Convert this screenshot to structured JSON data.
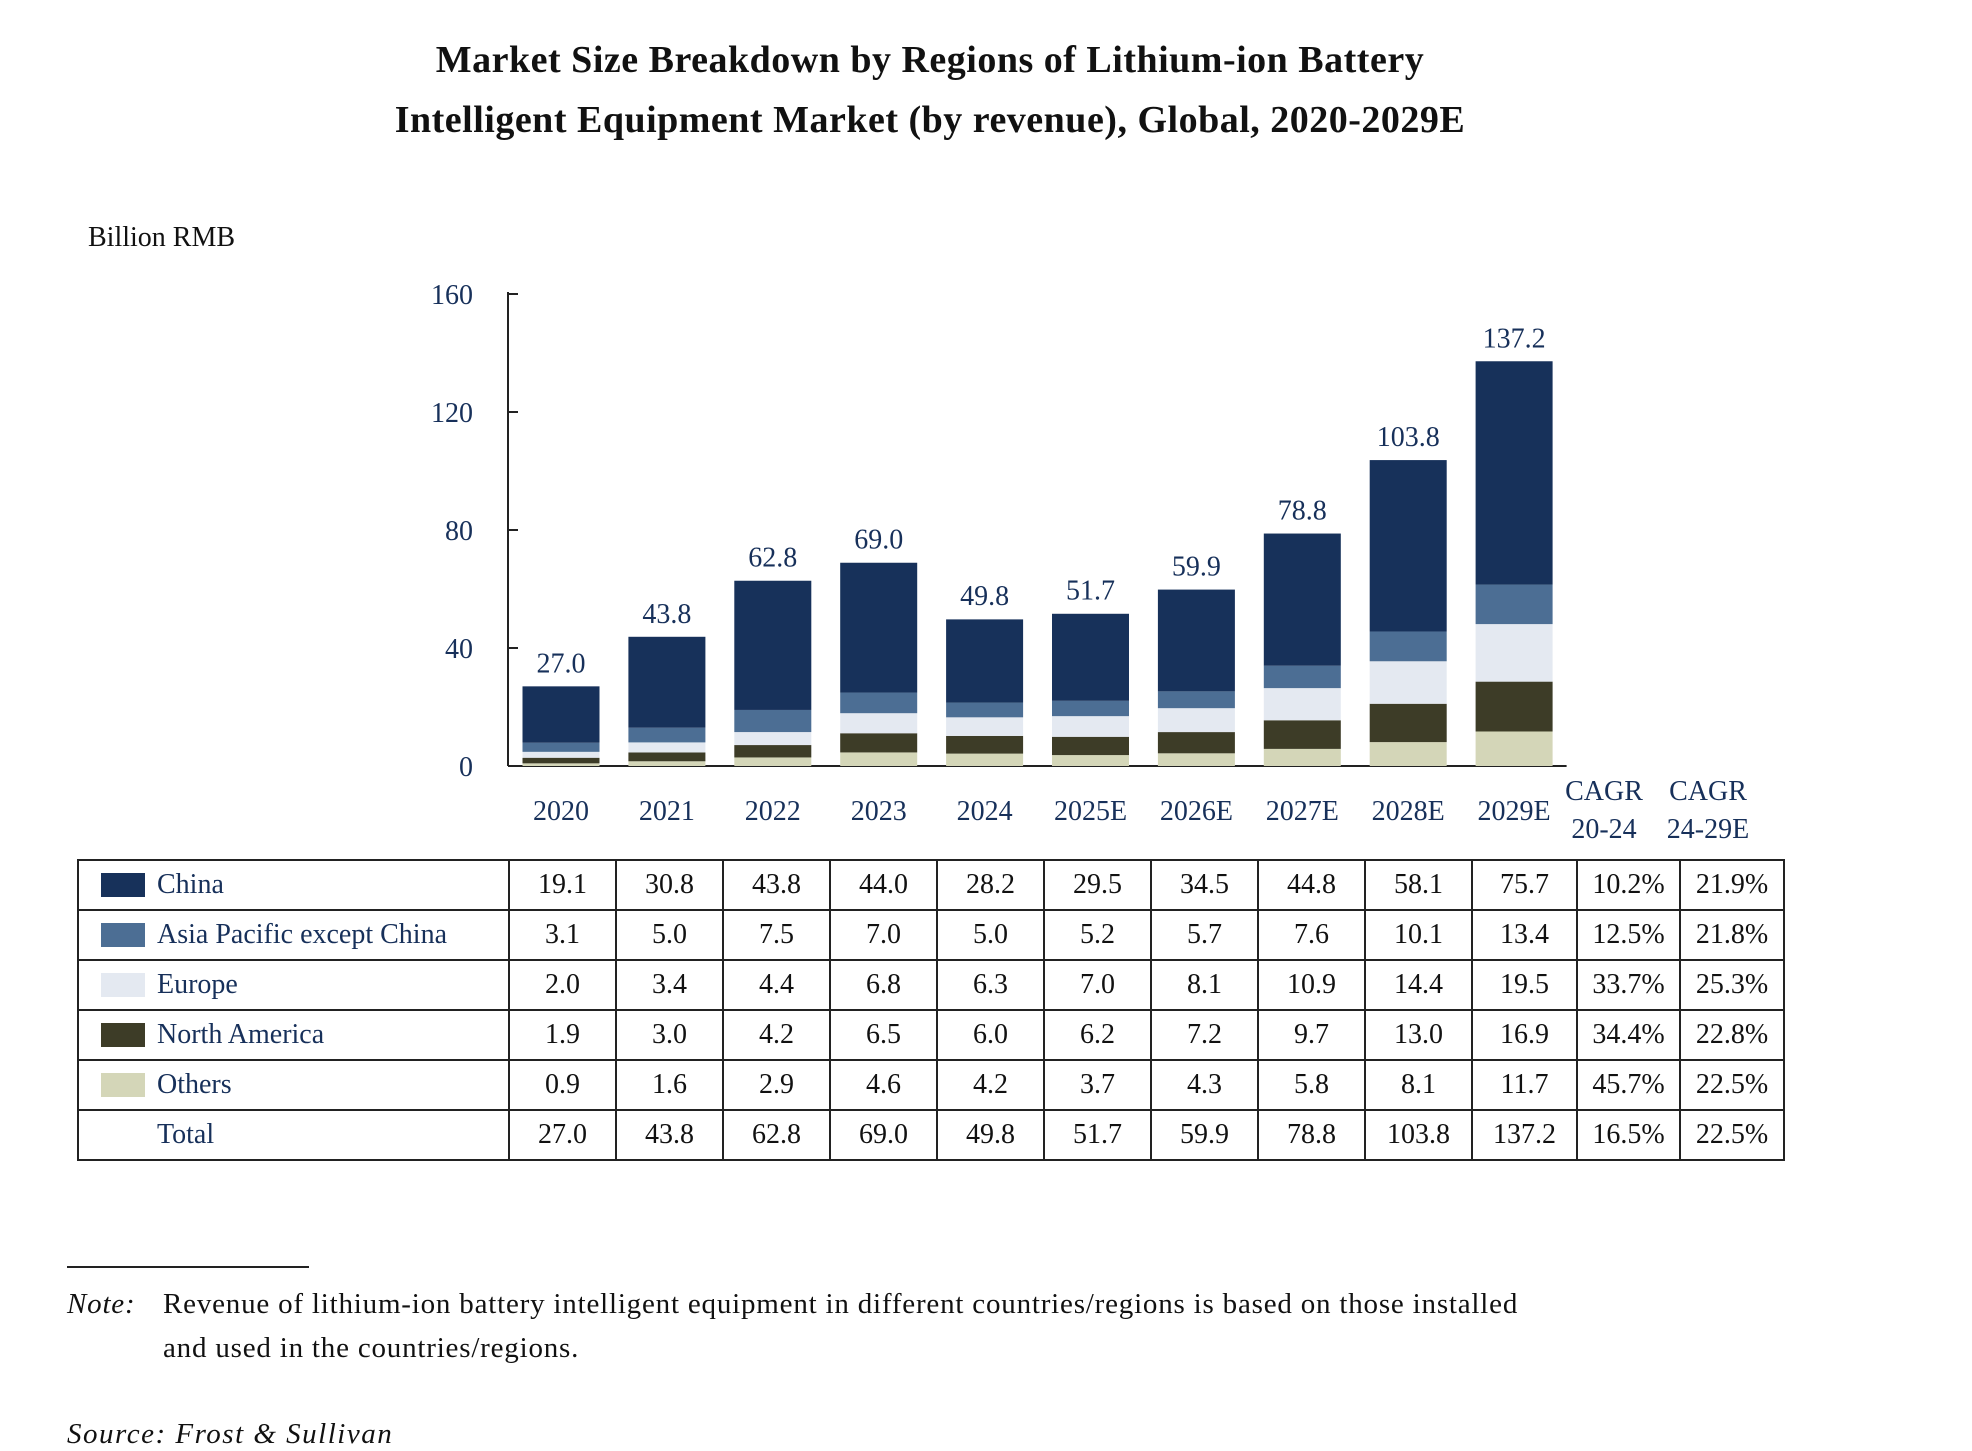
{
  "title_line1": "Market Size Breakdown by Regions of Lithium-ion Battery",
  "title_line2": "Intelligent Equipment Market (by revenue), Global, 2020-2029E",
  "unit_label": "Billion RMB",
  "chart_data": {
    "type": "bar",
    "stacked": true,
    "title": "Market Size Breakdown by Regions of Lithium-ion Battery Intelligent Equipment Market (by revenue), Global, 2020-2029E",
    "ylabel": "Billion RMB",
    "xlabel": "",
    "ylim": [
      0,
      160
    ],
    "yticks": [
      0,
      40,
      80,
      120,
      160
    ],
    "grid": false,
    "categories": [
      "2020",
      "2021",
      "2022",
      "2023",
      "2024",
      "2025E",
      "2026E",
      "2027E",
      "2028E",
      "2029E"
    ],
    "series": [
      {
        "name": "China",
        "color": "#17315a",
        "values": [
          19.1,
          30.8,
          43.8,
          44.0,
          28.2,
          29.5,
          34.5,
          44.8,
          58.1,
          75.7
        ],
        "cagr": [
          "10.2%",
          "21.9%"
        ]
      },
      {
        "name": "Asia Pacific except China",
        "color": "#4c6e94",
        "values": [
          3.1,
          5.0,
          7.5,
          7.0,
          5.0,
          5.2,
          5.7,
          7.6,
          10.1,
          13.4
        ],
        "cagr": [
          "12.5%",
          "21.8%"
        ]
      },
      {
        "name": "Europe",
        "color": "#e4e9f1",
        "values": [
          2.0,
          3.4,
          4.4,
          6.8,
          6.3,
          7.0,
          8.1,
          10.9,
          14.4,
          19.5
        ],
        "cagr": [
          "33.7%",
          "25.3%"
        ]
      },
      {
        "name": "North America",
        "color": "#3d3c27",
        "values": [
          1.9,
          3.0,
          4.2,
          6.5,
          6.0,
          6.2,
          7.2,
          9.7,
          13.0,
          16.9
        ],
        "cagr": [
          "34.4%",
          "22.8%"
        ]
      },
      {
        "name": "Others",
        "color": "#d4d6b8",
        "values": [
          0.9,
          1.6,
          2.9,
          4.6,
          4.2,
          3.7,
          4.3,
          5.8,
          8.1,
          11.7
        ],
        "cagr": [
          "45.7%",
          "22.5%"
        ]
      }
    ],
    "totals": {
      "name": "Total",
      "values": [
        27.0,
        43.8,
        62.8,
        69.0,
        49.8,
        51.7,
        59.9,
        78.8,
        103.8,
        137.2
      ],
      "total_labels": [
        "27.0",
        "43.8",
        "62.8",
        "69.0",
        "49.8",
        "51.7",
        "59.9",
        "78.8",
        "103.8",
        "137.2"
      ],
      "cagr": [
        "16.5%",
        "22.5%"
      ]
    },
    "cagr_headers": [
      {
        "line1": "CAGR",
        "line2": "20-24"
      },
      {
        "line1": "CAGR",
        "line2": "24-29E"
      }
    ]
  },
  "table": {
    "rows": [
      {
        "label": "China",
        "values": [
          "19.1",
          "30.8",
          "43.8",
          "44.0",
          "28.2",
          "29.5",
          "34.5",
          "44.8",
          "58.1",
          "75.7"
        ],
        "cagr": [
          "10.2%",
          "21.9%"
        ]
      },
      {
        "label": "Asia Pacific except China",
        "values": [
          "3.1",
          "5.0",
          "7.5",
          "7.0",
          "5.0",
          "5.2",
          "5.7",
          "7.6",
          "10.1",
          "13.4"
        ],
        "cagr": [
          "12.5%",
          "21.8%"
        ]
      },
      {
        "label": "Europe",
        "values": [
          "2.0",
          "3.4",
          "4.4",
          "6.8",
          "6.3",
          "7.0",
          "8.1",
          "10.9",
          "14.4",
          "19.5"
        ],
        "cagr": [
          "33.7%",
          "25.3%"
        ]
      },
      {
        "label": "North America",
        "values": [
          "1.9",
          "3.0",
          "4.2",
          "6.5",
          "6.0",
          "6.2",
          "7.2",
          "9.7",
          "13.0",
          "16.9"
        ],
        "cagr": [
          "34.4%",
          "22.8%"
        ]
      },
      {
        "label": "Others",
        "values": [
          "0.9",
          "1.6",
          "2.9",
          "4.6",
          "4.2",
          "3.7",
          "4.3",
          "5.8",
          "8.1",
          "11.7"
        ],
        "cagr": [
          "45.7%",
          "22.5%"
        ]
      },
      {
        "label": "Total",
        "values": [
          "27.0",
          "43.8",
          "62.8",
          "69.0",
          "49.8",
          "51.7",
          "59.9",
          "78.8",
          "103.8",
          "137.2"
        ],
        "cagr": [
          "16.5%",
          "22.5%"
        ]
      }
    ]
  },
  "colors": {
    "axis_text": "#17305a",
    "axis_line": "#222222"
  },
  "note": {
    "prefix": "Note:",
    "line1": "Revenue of lithium-ion battery intelligent equipment in different countries/regions is based on those installed",
    "line2": "and used in the countries/regions."
  },
  "source": "Source: Frost & Sullivan"
}
